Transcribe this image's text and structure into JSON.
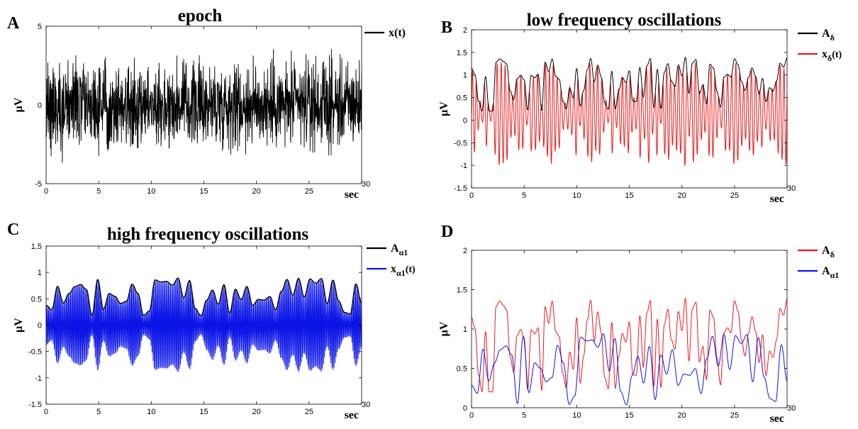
{
  "chart_data": [
    {
      "panel": "A",
      "type": "line",
      "title": "epoch",
      "xlabel": "sec",
      "ylabel": "μV",
      "xlim": [
        0,
        30
      ],
      "ylim": [
        -5,
        5
      ],
      "xticks": [
        "0",
        "5",
        "10",
        "15",
        "20",
        "25",
        "30"
      ],
      "yticks": [
        "-5",
        "0",
        "5"
      ],
      "legend": {
        "position": "top-right-outside"
      },
      "series": [
        {
          "name": "x(t)",
          "color": "#000000"
        }
      ]
    },
    {
      "panel": "B",
      "type": "line",
      "title": "low frequency oscillations",
      "xlabel": "sec",
      "ylabel": "μV",
      "xlim": [
        0,
        30
      ],
      "ylim": [
        -1.5,
        2
      ],
      "xticks": [
        "0",
        "5",
        "10",
        "15",
        "20",
        "25",
        "30"
      ],
      "yticks": [
        "-1.5",
        "-1",
        "-0.5",
        "0",
        "0.5",
        "1",
        "1.5",
        "2"
      ],
      "legend": {
        "position": "top-right-outside"
      },
      "series": [
        {
          "name": "A",
          "subscript": "δ",
          "color": "#000000"
        },
        {
          "name": "x",
          "subscript": "δ",
          "suffix": "(t)",
          "color": "#e8191b"
        }
      ]
    },
    {
      "panel": "C",
      "type": "line",
      "title": "high frequency oscillations",
      "xlabel": "sec",
      "ylabel": "μV",
      "xlim": [
        0,
        30
      ],
      "ylim": [
        -1.5,
        1.5
      ],
      "xticks": [
        "0",
        "5",
        "10",
        "15",
        "20",
        "25",
        "30"
      ],
      "yticks": [
        "-1.5",
        "-1",
        "-0.5",
        "0",
        "0.5",
        "1",
        "1.5"
      ],
      "legend": {
        "position": "top-right-outside"
      },
      "series": [
        {
          "name": "A",
          "subscript": "α1",
          "color": "#000000"
        },
        {
          "name": "x",
          "subscript": "α1",
          "suffix": "(t)",
          "color": "#0a14e6"
        }
      ]
    },
    {
      "panel": "D",
      "type": "line",
      "title": "",
      "xlabel": "sec",
      "ylabel": "μV",
      "xlim": [
        0,
        30
      ],
      "ylim": [
        0,
        2
      ],
      "xticks": [
        "0",
        "5",
        "10",
        "15",
        "20",
        "25",
        "30"
      ],
      "yticks": [
        "0",
        "0.5",
        "1",
        "1.5",
        "2"
      ],
      "legend": {
        "position": "top-right-outside"
      },
      "series": [
        {
          "name": "A",
          "subscript": "δ",
          "color": "#e8191b"
        },
        {
          "name": "A",
          "subscript": "α1",
          "color": "#0a14e6"
        }
      ]
    }
  ]
}
